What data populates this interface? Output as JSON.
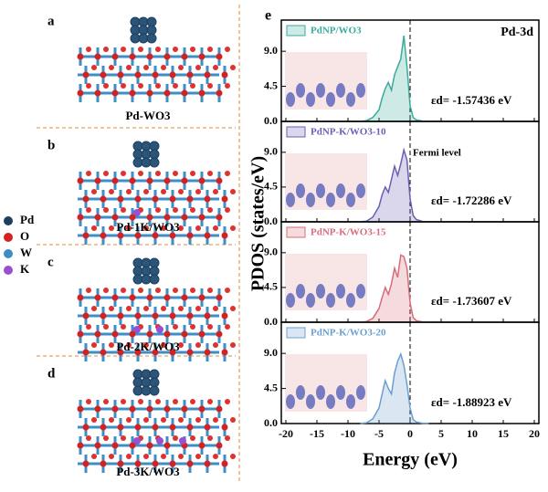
{
  "figure": {
    "y_label": "PDOS (states/eV)",
    "panel_e": "e",
    "structures": [
      {
        "label": "a",
        "caption": "Pd-WO3"
      },
      {
        "label": "b",
        "caption": "Pd-1K/WO3"
      },
      {
        "label": "c",
        "caption": "Pd-2K/WO3"
      },
      {
        "label": "d",
        "caption": "Pd-3K/WO3"
      }
    ],
    "atom_legend": [
      {
        "name": "Pd",
        "color": "#1f3f5f"
      },
      {
        "name": "O",
        "color": "#d42222"
      },
      {
        "name": "W",
        "color": "#3b8fc6"
      },
      {
        "name": "K",
        "color": "#9a4fd0"
      }
    ]
  },
  "chart_data": [
    {
      "type": "area",
      "title": "Pd-3d",
      "annotation": "εd= -1.57436 eV",
      "xlim": [
        -20,
        20
      ],
      "ylim": [
        0,
        13
      ],
      "yticks": [
        {
          "value": 0,
          "label": "0.0"
        },
        4.5,
        {
          "value": 9,
          "label": "9.0"
        }
      ],
      "x": [
        -8,
        -7,
        -6,
        -5,
        -4.5,
        -4,
        -3.5,
        -3,
        -2.5,
        -2,
        -1.5,
        -1,
        -0.5,
        0,
        0.5,
        1,
        2,
        3
      ],
      "series": [
        {
          "name": "PdNP/WO3",
          "color": "#3aab9c",
          "values": [
            0,
            0.1,
            0.5,
            1.5,
            3,
            4.2,
            5,
            4,
            6,
            7,
            8,
            11,
            7,
            2,
            0.5,
            0.2,
            0.05,
            0
          ]
        }
      ]
    },
    {
      "type": "area",
      "annotation": "εd= -1.72286 eV",
      "fermi_label": "Fermi level",
      "xlim": [
        -20,
        20
      ],
      "ylim": [
        0,
        13
      ],
      "yticks": [
        {
          "value": 0,
          "label": "0.0"
        },
        4.5,
        {
          "value": 9,
          "label": "9.0"
        }
      ],
      "x": [
        -8,
        -7,
        -6,
        -5,
        -4.5,
        -4,
        -3.5,
        -3,
        -2.5,
        -2,
        -1.5,
        -1,
        -0.5,
        0,
        0.5,
        1,
        2,
        3
      ],
      "series": [
        {
          "name": "PdNP-K/WO3-10",
          "color": "#6a5fb5",
          "values": [
            0,
            0.1,
            0.6,
            2,
            3.5,
            4.5,
            3.8,
            5.5,
            7.2,
            6,
            7.5,
            9.3,
            8,
            3,
            0.8,
            0.3,
            0.05,
            0
          ]
        }
      ]
    },
    {
      "type": "area",
      "annotation": "εd= -1.73607 eV",
      "xlim": [
        -20,
        20
      ],
      "ylim": [
        0,
        13
      ],
      "yticks": [
        {
          "value": 0,
          "label": "0.0"
        },
        4.5,
        {
          "value": 9,
          "label": "9.0"
        }
      ],
      "x": [
        -8,
        -7,
        -6,
        -5,
        -4.5,
        -4,
        -3.5,
        -3,
        -2.5,
        -2,
        -1.5,
        -1,
        -0.5,
        0,
        0.5,
        1,
        2,
        3
      ],
      "series": [
        {
          "name": "PdNP-K/WO3-15",
          "color": "#d66d7a",
          "values": [
            0,
            0.1,
            0.5,
            1.8,
            3.2,
            4.5,
            3.6,
            5,
            7,
            5.8,
            8.7,
            8.5,
            7,
            2.5,
            0.6,
            0.2,
            0.05,
            0
          ]
        }
      ]
    },
    {
      "type": "area",
      "annotation": "εd= -1.88923 eV",
      "x_label": "Energy (eV)",
      "xlim": [
        -20,
        20
      ],
      "ylim": [
        0,
        13
      ],
      "xticks": [
        -20,
        -15,
        -10,
        -5,
        0,
        5,
        10,
        15,
        20
      ],
      "yticks": [
        {
          "value": 0,
          "label": "0.0"
        },
        4.5,
        {
          "value": 9,
          "label": "9.0"
        }
      ],
      "x": [
        -8,
        -7,
        -6,
        -5,
        -4.5,
        -4,
        -3.5,
        -3,
        -2.5,
        -2,
        -1.5,
        -1,
        -0.5,
        0,
        0.5,
        1,
        2,
        3
      ],
      "series": [
        {
          "name": "PdNP-K/WO3-20",
          "color": "#6a9fcf",
          "values": [
            0,
            0.1,
            0.6,
            2,
            3.8,
            5.5,
            4.5,
            3.8,
            6.5,
            8,
            8.9,
            7.5,
            5,
            2,
            0.5,
            0.2,
            0.05,
            0
          ]
        }
      ]
    }
  ]
}
